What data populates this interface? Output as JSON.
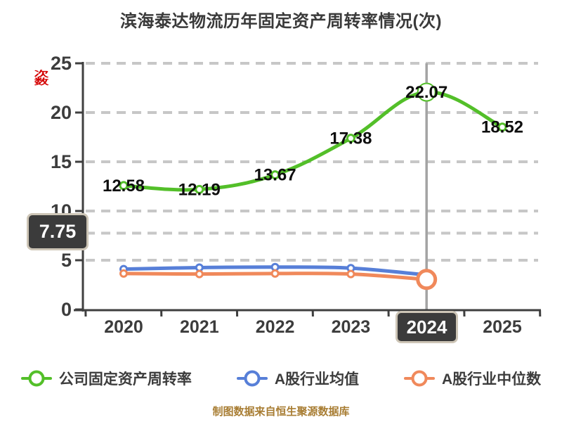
{
  "title": "滨海泰达物流历年固定资产周转率情况(次)",
  "footer_note": "制图数据来自恒生聚源数据库",
  "colors": {
    "company_green": "#53bf29",
    "industry_mean_blue": "#577fd8",
    "industry_median_orange": "#f0895b",
    "grid": "#c7c7c7",
    "axis": "#3f3f3f",
    "tick_text": "#3c3c3c",
    "point_label_text": "#0e0e0e",
    "pointer_line": "#a3a3a3",
    "tooltip_bg": "#3b3b3b",
    "tooltip_border": "#cdc5b6",
    "footer_gold": "#a87d33",
    "axis_name_red": "#d40000"
  },
  "y_axis": {
    "name": "次数",
    "ticks": [
      "0",
      "5",
      "10",
      "15",
      "20",
      "25"
    ]
  },
  "legend": [
    {
      "label": "公司固定资产周转率",
      "color": "#53bf29"
    },
    {
      "label": "A股行业均值",
      "color": "#577fd8"
    },
    {
      "label": "A股行业中位数",
      "color": "#f0895b"
    }
  ],
  "chart_data": {
    "type": "line",
    "title": "滨海泰达物流历年固定资产周转率情况(次)",
    "categories": [
      "2020",
      "2021",
      "2022",
      "2023",
      "2024",
      "2025"
    ],
    "ylim": [
      0,
      25
    ],
    "y_tick_interval": 5,
    "grid": "horizontal-dashed",
    "legend_position": "bottom",
    "series": [
      {
        "name": "公司固定资产周转率",
        "color": "#53bf29",
        "smooth": true,
        "values": [
          12.58,
          12.19,
          13.67,
          17.38,
          22.07,
          18.52
        ],
        "point_labels": [
          "12.58",
          "12.19",
          "13.67",
          "17.38",
          "22.07",
          "18.52"
        ],
        "highlight_index": 4
      },
      {
        "name": "A股行业均值",
        "color": "#577fd8",
        "smooth": true,
        "values": [
          4.1,
          4.25,
          4.3,
          4.2,
          3.5
        ]
      },
      {
        "name": "A股行业中位数",
        "color": "#f0895b",
        "smooth": true,
        "values": [
          3.65,
          3.6,
          3.65,
          3.6,
          3.05
        ],
        "highlight_index": 4
      }
    ],
    "axis_pointer": {
      "x_label": "2024",
      "y_label": "7.75",
      "y_value": 7.75,
      "x_category_index": 4
    }
  }
}
